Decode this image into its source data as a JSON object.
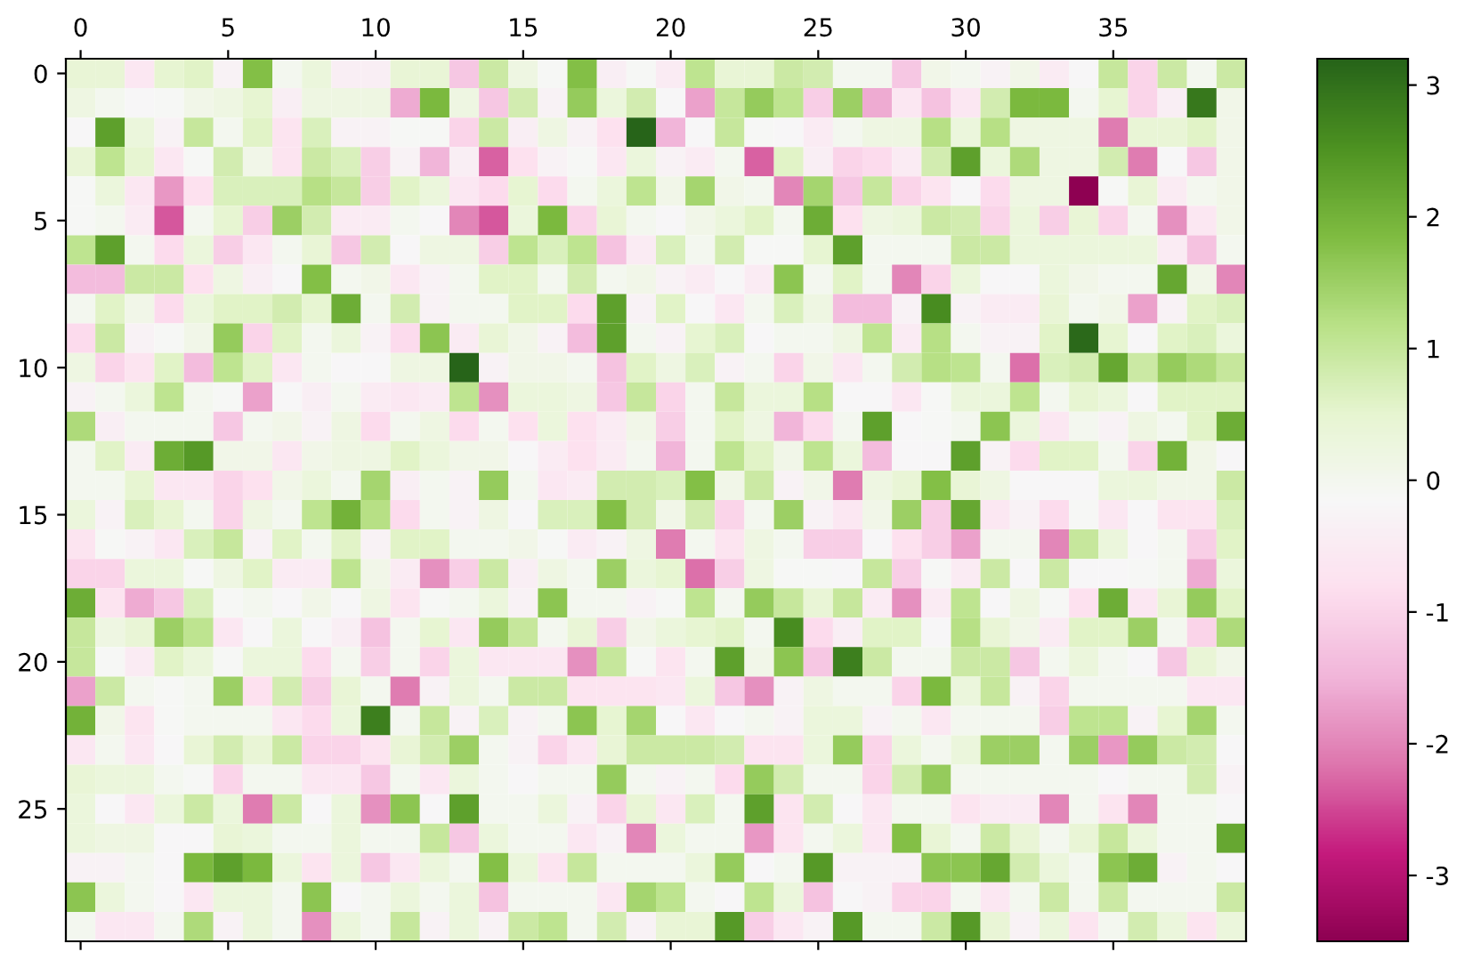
{
  "chart_data": {
    "type": "heatmap",
    "categories": [
      "0",
      null,
      null,
      null,
      null,
      "5",
      null,
      null,
      null,
      null,
      "10",
      null,
      null,
      null,
      null,
      "15",
      null,
      null,
      null,
      null,
      "20",
      null,
      null,
      null,
      null,
      "25",
      null,
      null,
      null,
      null,
      "30",
      null,
      null,
      null,
      null,
      "35",
      null,
      null,
      null,
      null
    ],
    "y_categories": [
      "0",
      null,
      null,
      null,
      null,
      "5",
      null,
      null,
      null,
      null,
      "10",
      null,
      null,
      null,
      null,
      "15",
      null,
      null,
      null,
      null,
      "20",
      null,
      null,
      null,
      null,
      "25",
      null,
      null,
      null,
      null
    ],
    "clim": [
      -3.5,
      3.2
    ],
    "cticks": [
      -3,
      -2,
      -1,
      0,
      1,
      2,
      3
    ],
    "cells": [
      [
        0.4,
        0.4,
        -0.6,
        0.5,
        0.6,
        -0.3,
        1.8,
        0.0,
        0.3,
        -0.4,
        -0.4,
        0.4,
        0.4,
        -1.2,
        0.9,
        0.2,
        -0.1,
        1.8,
        -0.4,
        -0.1,
        -0.5,
        1.1,
        0.4,
        0.4,
        0.9,
        0.8,
        0.0,
        0.0,
        -1.2,
        0.1,
        0.0,
        -0.3,
        0.1,
        -0.5,
        -0.2,
        1.0,
        -1.0,
        0.9,
        0.0,
        0.9
      ],
      [
        0.2,
        0.0,
        -0.2,
        -0.1,
        0.1,
        0.2,
        0.5,
        -0.4,
        0.2,
        0.2,
        0.2,
        -1.6,
        1.9,
        0.2,
        -1.2,
        0.8,
        -0.3,
        1.6,
        0.3,
        0.8,
        -0.2,
        -1.7,
        1.0,
        1.6,
        1.1,
        -1.1,
        1.5,
        -1.6,
        -0.6,
        -1.3,
        -0.6,
        0.8,
        1.9,
        1.9,
        0.0,
        0.5,
        -1.0,
        -0.4,
        2.9,
        0.1
      ],
      [
        -0.2,
        2.3,
        0.3,
        -0.3,
        1.0,
        0.0,
        0.6,
        -0.7,
        0.7,
        -0.3,
        -0.3,
        -0.1,
        -0.1,
        -1.0,
        0.9,
        -0.4,
        0.2,
        -0.3,
        -0.8,
        3.2,
        -1.5,
        -0.2,
        1.0,
        -0.1,
        -0.2,
        -0.5,
        0.0,
        0.2,
        0.2,
        1.2,
        0.3,
        1.2,
        0.2,
        0.2,
        0.2,
        -2.1,
        0.4,
        0.4,
        0.6,
        0.1
      ],
      [
        0.4,
        1.1,
        0.5,
        -0.6,
        -0.1,
        0.8,
        0.1,
        -0.7,
        0.9,
        0.7,
        -1.1,
        -0.3,
        -1.5,
        -0.4,
        -2.3,
        -0.8,
        -0.3,
        -0.1,
        -0.6,
        0.3,
        -0.3,
        -0.5,
        0.0,
        -2.3,
        0.6,
        -0.4,
        -1.0,
        -0.9,
        -0.5,
        0.8,
        2.3,
        0.3,
        1.3,
        0.2,
        0.2,
        0.8,
        -2.1,
        -0.2,
        -1.2,
        0.1
      ],
      [
        -0.1,
        0.3,
        -0.6,
        -1.8,
        -0.8,
        0.7,
        0.7,
        0.7,
        1.2,
        1.0,
        -1.1,
        0.6,
        0.3,
        -0.6,
        -0.9,
        0.5,
        -0.9,
        0.0,
        0.3,
        1.1,
        0.1,
        1.4,
        0.1,
        0.0,
        -2.0,
        1.4,
        -1.2,
        1.0,
        -1.0,
        -0.7,
        -0.2,
        -0.9,
        0.2,
        0.2,
        -3.5,
        -0.1,
        0.4,
        -0.5,
        0.0,
        0.1
      ],
      [
        -0.1,
        0.0,
        -0.5,
        -2.4,
        0.0,
        0.5,
        -1.1,
        1.5,
        0.8,
        -0.5,
        -0.5,
        0.0,
        -0.2,
        -2.0,
        -2.4,
        0.3,
        1.9,
        -1.0,
        0.4,
        0.0,
        -0.2,
        0.1,
        0.3,
        0.6,
        0.0,
        2.1,
        -0.8,
        0.2,
        0.3,
        0.9,
        0.8,
        -1.0,
        0.3,
        -1.1,
        0.4,
        -1.0,
        0.0,
        -1.9,
        -0.6,
        0.1
      ],
      [
        1.1,
        2.3,
        0.0,
        -0.9,
        0.3,
        -1.1,
        -0.6,
        0.0,
        0.4,
        -1.2,
        0.8,
        -0.2,
        0.2,
        0.2,
        -1.1,
        1.1,
        0.7,
        1.1,
        -1.3,
        -0.5,
        0.7,
        0.0,
        0.8,
        -0.1,
        -0.1,
        0.5,
        2.3,
        0.0,
        0.0,
        0.0,
        0.9,
        0.9,
        0.3,
        0.3,
        0.3,
        0.3,
        0.3,
        -0.5,
        -1.3,
        0.0
      ],
      [
        -1.4,
        -1.4,
        0.9,
        0.9,
        -0.8,
        0.2,
        -0.4,
        -0.2,
        1.8,
        0.0,
        0.1,
        -0.6,
        -0.3,
        0.0,
        0.6,
        0.6,
        0.0,
        0.8,
        0.0,
        0.1,
        -0.3,
        -0.5,
        -0.2,
        -0.5,
        1.7,
        0.0,
        0.6,
        0.0,
        -2.0,
        -1.0,
        0.3,
        -0.2,
        -0.2,
        0.3,
        0.1,
        0.0,
        0.0,
        2.2,
        0.1,
        -2.0
      ],
      [
        0.0,
        0.6,
        0.1,
        -0.9,
        0.3,
        0.6,
        0.6,
        0.8,
        0.5,
        2.1,
        0.0,
        0.8,
        -0.3,
        0.0,
        0.0,
        0.6,
        0.6,
        -0.9,
        2.3,
        -0.3,
        0.6,
        -0.2,
        -0.6,
        0.0,
        0.7,
        0.2,
        -1.4,
        -1.4,
        -0.3,
        2.6,
        -0.3,
        -0.5,
        -0.5,
        0.4,
        0.0,
        0.1,
        -1.7,
        -0.3,
        0.6,
        0.7
      ],
      [
        -0.9,
        0.9,
        -0.3,
        -0.1,
        0.1,
        1.6,
        -1.0,
        0.6,
        0.0,
        0.3,
        -0.3,
        -0.9,
        1.7,
        -0.5,
        0.4,
        0.1,
        -0.3,
        -1.4,
        2.3,
        0.0,
        -0.3,
        0.5,
        0.7,
        -0.2,
        0.0,
        0.0,
        0.2,
        1.1,
        -0.5,
        1.2,
        0.0,
        -0.3,
        -0.3,
        0.6,
        3.1,
        0.5,
        -0.2,
        0.6,
        0.7,
        0.3
      ],
      [
        0.2,
        -1.0,
        -0.7,
        0.6,
        -1.4,
        1.1,
        0.6,
        -0.6,
        0.0,
        -0.2,
        -0.2,
        0.2,
        0.2,
        3.2,
        -0.3,
        0.1,
        0.1,
        0.0,
        -1.3,
        0.6,
        0.2,
        0.7,
        -0.3,
        0.0,
        -1.0,
        0.1,
        -0.6,
        0.0,
        0.8,
        1.2,
        1.1,
        0.0,
        -2.2,
        0.7,
        0.8,
        2.2,
        0.9,
        1.6,
        1.3,
        1.0
      ],
      [
        -0.3,
        0.0,
        0.3,
        1.1,
        0.0,
        -0.1,
        -1.7,
        -0.2,
        -0.4,
        0.0,
        -0.5,
        -0.6,
        -0.5,
        1.1,
        -1.9,
        0.3,
        0.3,
        0.2,
        -1.2,
        1.0,
        -1.0,
        0.0,
        1.0,
        0.3,
        0.3,
        1.2,
        -0.2,
        -0.2,
        -0.6,
        -0.1,
        0.3,
        0.3,
        1.1,
        0.0,
        0.5,
        0.3,
        -0.2,
        0.6,
        0.6,
        0.6
      ],
      [
        1.3,
        -0.4,
        0.0,
        0.0,
        0.0,
        -1.2,
        0.0,
        0.1,
        -0.3,
        0.2,
        -0.9,
        0.0,
        0.2,
        -0.9,
        0.0,
        -0.8,
        0.3,
        -0.8,
        -0.5,
        0.1,
        -1.1,
        0.0,
        0.6,
        0.2,
        -1.5,
        -0.9,
        0.0,
        2.3,
        -0.2,
        -0.1,
        0.0,
        1.7,
        0.3,
        -0.6,
        0.0,
        -0.3,
        0.2,
        0.0,
        0.6,
        2.1
      ],
      [
        0.0,
        0.6,
        -0.5,
        2.1,
        2.4,
        0.1,
        0.1,
        -0.6,
        0.1,
        0.2,
        0.2,
        0.6,
        0.3,
        0.1,
        0.1,
        -0.2,
        -0.5,
        -0.8,
        -0.5,
        0.0,
        -1.5,
        0.0,
        1.1,
        0.6,
        0.1,
        1.1,
        0.3,
        -1.4,
        -0.2,
        -0.2,
        2.3,
        -0.3,
        -0.9,
        0.6,
        0.6,
        0.0,
        -1.0,
        2.0,
        0.1,
        -0.2
      ],
      [
        0.0,
        0.0,
        0.5,
        -0.6,
        -0.6,
        -1.0,
        -0.8,
        0.1,
        0.3,
        0.0,
        1.4,
        -0.4,
        0.0,
        -0.3,
        1.6,
        0.0,
        -0.6,
        -0.5,
        0.8,
        0.8,
        0.7,
        1.8,
        0.1,
        0.9,
        -0.3,
        0.1,
        -2.1,
        0.2,
        0.4,
        1.8,
        0.4,
        0.2,
        -0.2,
        -0.2,
        -0.2,
        0.3,
        0.3,
        0.1,
        0.1,
        0.9
      ],
      [
        0.3,
        -0.3,
        0.7,
        0.5,
        0.0,
        -1.0,
        0.2,
        0.0,
        1.1,
        2.0,
        1.2,
        -0.9,
        0.0,
        -0.3,
        0.2,
        -0.2,
        0.7,
        0.7,
        1.8,
        0.8,
        0.1,
        0.8,
        -1.0,
        0.0,
        1.5,
        -0.3,
        -0.6,
        0.1,
        1.5,
        -1.1,
        2.2,
        -0.6,
        -0.3,
        -0.9,
        -0.1,
        -0.6,
        -0.2,
        -0.7,
        -0.7,
        0.7
      ],
      [
        -0.7,
        -0.1,
        -0.3,
        -0.6,
        0.7,
        1.0,
        -0.3,
        0.6,
        0.0,
        0.6,
        -0.3,
        0.6,
        0.6,
        0.0,
        0.0,
        0.1,
        -0.1,
        -0.5,
        -0.3,
        0.2,
        -2.1,
        0.0,
        -0.7,
        0.2,
        0.0,
        -1.1,
        -1.1,
        -0.2,
        -0.8,
        -1.1,
        -1.7,
        0.0,
        0.0,
        -2.0,
        1.0,
        0.3,
        -0.2,
        0.0,
        -1.1,
        0.6
      ],
      [
        -1.0,
        -1.0,
        0.3,
        0.3,
        -0.1,
        0.2,
        0.6,
        -0.5,
        -0.5,
        1.1,
        0.1,
        -0.5,
        -1.9,
        -1.1,
        0.9,
        -0.4,
        0.2,
        0.0,
        1.5,
        0.3,
        0.5,
        -2.2,
        -1.1,
        0.2,
        -0.1,
        -0.1,
        -0.2,
        1.0,
        -1.1,
        -0.1,
        -0.5,
        0.9,
        -0.2,
        0.9,
        -0.2,
        -0.2,
        -0.1,
        0.0,
        -1.6,
        0.3
      ],
      [
        2.1,
        -0.7,
        -1.6,
        -1.2,
        0.7,
        -0.1,
        0.0,
        -0.2,
        0.1,
        -0.2,
        0.2,
        -0.7,
        -0.1,
        0.0,
        0.3,
        -0.3,
        1.7,
        0.0,
        0.0,
        -0.3,
        -0.1,
        1.1,
        0.0,
        1.6,
        1.0,
        0.4,
        1.0,
        -0.5,
        -1.9,
        -0.5,
        1.1,
        -0.2,
        0.2,
        -0.1,
        -0.8,
        2.1,
        -0.6,
        0.4,
        1.6,
        0.6
      ],
      [
        1.0,
        0.2,
        0.4,
        1.5,
        1.1,
        -0.6,
        -0.2,
        0.3,
        -0.2,
        -0.4,
        -1.3,
        0.0,
        0.5,
        -0.6,
        1.6,
        1.0,
        0.0,
        0.4,
        -1.1,
        0.1,
        0.3,
        0.5,
        0.6,
        0.0,
        2.6,
        -0.9,
        -0.4,
        0.6,
        0.6,
        -0.2,
        1.2,
        0.4,
        0.1,
        -0.5,
        0.6,
        0.6,
        1.5,
        0.0,
        -1.0,
        1.3
      ],
      [
        1.0,
        -0.1,
        -0.5,
        0.6,
        0.3,
        -0.1,
        0.3,
        0.3,
        -0.9,
        0.0,
        -1.1,
        0.0,
        -1.0,
        0.3,
        -0.6,
        -0.6,
        -0.6,
        -1.9,
        1.0,
        -0.1,
        -0.7,
        0.0,
        2.3,
        0.1,
        1.7,
        -1.2,
        2.8,
        0.9,
        0.0,
        0.0,
        0.9,
        0.9,
        -1.2,
        0.0,
        0.3,
        0.0,
        -0.2,
        -1.2,
        0.4,
        0.1
      ],
      [
        -1.7,
        0.9,
        0.0,
        -0.1,
        0.0,
        1.5,
        -0.8,
        0.8,
        -1.1,
        0.4,
        0.0,
        -2.1,
        -0.3,
        0.3,
        0.0,
        0.9,
        0.9,
        -0.7,
        -0.7,
        -0.7,
        -0.6,
        0.3,
        -1.2,
        -1.9,
        -0.3,
        0.2,
        0.0,
        0.0,
        -1.0,
        1.9,
        0.3,
        1.0,
        -0.3,
        -1.0,
        0.0,
        0.0,
        0.0,
        0.0,
        -0.6,
        -0.6
      ],
      [
        2.0,
        0.1,
        -0.7,
        -0.1,
        0.0,
        0.0,
        0.0,
        -0.6,
        -0.9,
        0.3,
        2.8,
        0.0,
        1.0,
        -0.3,
        0.7,
        -0.3,
        0.0,
        1.7,
        0.5,
        1.4,
        -0.2,
        -0.6,
        -0.2,
        0.0,
        -0.3,
        0.3,
        0.3,
        -0.3,
        0.0,
        -0.6,
        0.0,
        0.0,
        0.0,
        -1.1,
        1.1,
        1.1,
        -0.3,
        0.5,
        1.4,
        0.0
      ],
      [
        -0.6,
        0.0,
        -0.6,
        -0.2,
        0.4,
        0.8,
        0.4,
        0.9,
        -1.0,
        -1.0,
        -0.7,
        0.4,
        0.8,
        1.5,
        0.0,
        -0.3,
        -1.0,
        -0.6,
        0.4,
        0.9,
        0.9,
        0.9,
        0.8,
        -0.7,
        -0.7,
        0.3,
        1.6,
        -1.0,
        0.3,
        0.0,
        0.3,
        1.5,
        1.5,
        0.0,
        1.5,
        -1.8,
        1.6,
        0.9,
        0.8,
        -0.2
      ],
      [
        0.4,
        0.3,
        0.3,
        0.0,
        -0.1,
        -1.0,
        0.0,
        0.0,
        -0.6,
        -0.6,
        -1.2,
        0.0,
        -0.6,
        0.3,
        0.0,
        -0.2,
        0.0,
        0.0,
        1.6,
        0.0,
        -0.3,
        0.0,
        -0.9,
        1.6,
        0.8,
        0.0,
        0.0,
        -1.0,
        0.8,
        1.6,
        0.0,
        0.0,
        0.0,
        0.0,
        0.0,
        -0.2,
        0.0,
        0.0,
        0.8,
        -0.3
      ],
      [
        0.3,
        -0.2,
        -0.6,
        0.3,
        0.9,
        0.3,
        -2.1,
        0.9,
        -0.2,
        0.3,
        -1.9,
        1.7,
        -0.2,
        2.3,
        0.0,
        0.0,
        0.3,
        -0.3,
        -1.0,
        0.4,
        -0.6,
        0.7,
        0.0,
        2.3,
        -0.7,
        0.8,
        -0.2,
        -0.6,
        0.0,
        0.0,
        -0.7,
        -0.5,
        -0.5,
        -2.0,
        0.0,
        -0.7,
        -2.0,
        0.0,
        0.0,
        -0.2
      ],
      [
        0.3,
        0.2,
        0.2,
        -0.2,
        -0.2,
        0.4,
        0.3,
        0.0,
        0.0,
        0.3,
        0.0,
        0.0,
        1.0,
        -1.2,
        0.3,
        0.0,
        0.0,
        -0.6,
        -0.3,
        -2.0,
        0.3,
        0.0,
        0.0,
        -1.8,
        -0.7,
        0.0,
        0.3,
        -0.6,
        1.8,
        0.4,
        0.0,
        0.9,
        0.4,
        0.0,
        0.4,
        1.0,
        0.3,
        0.0,
        0.0,
        2.2
      ],
      [
        -0.3,
        -0.3,
        0.0,
        -0.2,
        1.9,
        2.3,
        1.9,
        0.3,
        -0.7,
        0.3,
        -1.2,
        -0.6,
        0.3,
        0.0,
        1.8,
        0.3,
        -0.7,
        1.0,
        0.0,
        0.0,
        0.0,
        0.3,
        1.6,
        -0.2,
        0.0,
        2.4,
        -0.3,
        -0.3,
        -0.3,
        1.7,
        1.7,
        2.2,
        0.8,
        0.3,
        0.0,
        1.7,
        2.1,
        -0.3,
        0.0,
        -0.2
      ],
      [
        1.7,
        0.3,
        0.0,
        -0.2,
        -0.6,
        0.3,
        0.3,
        0.0,
        1.7,
        -0.2,
        0.0,
        0.3,
        0.0,
        0.3,
        -1.3,
        0.0,
        0.0,
        0.0,
        -0.6,
        1.4,
        1.1,
        0.0,
        -0.2,
        1.1,
        0.3,
        -1.3,
        -0.2,
        -0.3,
        -1.0,
        -1.0,
        0.0,
        -0.6,
        0.0,
        0.9,
        0.0,
        0.9,
        0.0,
        0.0,
        0.0,
        0.9
      ],
      [
        0.0,
        -0.6,
        -0.6,
        0.0,
        1.3,
        -0.3,
        0.3,
        0.0,
        -1.9,
        0.3,
        0.0,
        1.0,
        -0.3,
        0.3,
        -0.3,
        0.9,
        1.1,
        0.0,
        0.8,
        -0.3,
        0.4,
        0.4,
        2.4,
        -1.1,
        -0.6,
        -0.3,
        2.4,
        0.0,
        0.0,
        0.9,
        2.4,
        0.4,
        -0.3,
        0.3,
        -0.7,
        0.0,
        0.8,
        0.3,
        -0.7,
        0.3
      ]
    ]
  }
}
